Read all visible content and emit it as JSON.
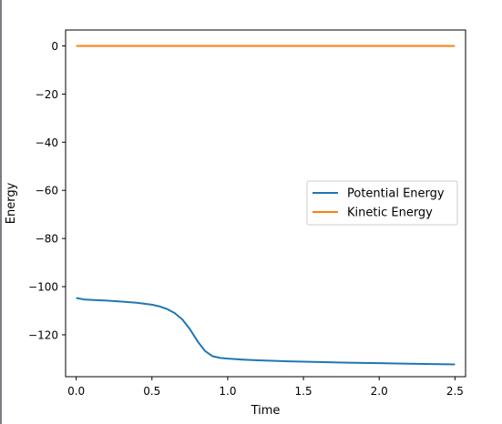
{
  "chart_data": {
    "type": "line",
    "title": "",
    "xlabel": "Time",
    "ylabel": "Energy",
    "xlim": [
      -0.07,
      2.57
    ],
    "ylim": [
      -137.4,
      6.6
    ],
    "xticks": [
      0.0,
      0.5,
      1.0,
      1.5,
      2.0,
      2.5
    ],
    "xtick_labels": [
      "0.0",
      "0.5",
      "1.0",
      "1.5",
      "2.0",
      "2.5"
    ],
    "yticks": [
      0,
      -20,
      -40,
      -60,
      -80,
      -100,
      -120
    ],
    "ytick_labels": [
      "0",
      "−20",
      "−40",
      "−60",
      "−80",
      "−100",
      "−120"
    ],
    "grid": false,
    "legend_position": "center-right",
    "series": [
      {
        "name": "Potential Energy",
        "color": "#1f77b4",
        "x": [
          0.0,
          0.05,
          0.1,
          0.2,
          0.3,
          0.4,
          0.5,
          0.55,
          0.6,
          0.65,
          0.7,
          0.75,
          0.8,
          0.85,
          0.9,
          0.95,
          1.0,
          1.1,
          1.2,
          1.4,
          1.6,
          1.8,
          2.0,
          2.2,
          2.4,
          2.5
        ],
        "y": [
          -104.7,
          -105.3,
          -105.5,
          -105.8,
          -106.2,
          -106.7,
          -107.5,
          -108.2,
          -109.3,
          -111.0,
          -113.6,
          -117.6,
          -122.6,
          -126.7,
          -128.9,
          -129.6,
          -129.9,
          -130.3,
          -130.6,
          -131.0,
          -131.3,
          -131.6,
          -131.8,
          -132.0,
          -132.2,
          -132.3
        ]
      },
      {
        "name": "Kinetic Energy",
        "color": "#ff7f0e",
        "x": [
          0.0,
          2.5
        ],
        "y": [
          0.0,
          0.0
        ]
      }
    ]
  }
}
